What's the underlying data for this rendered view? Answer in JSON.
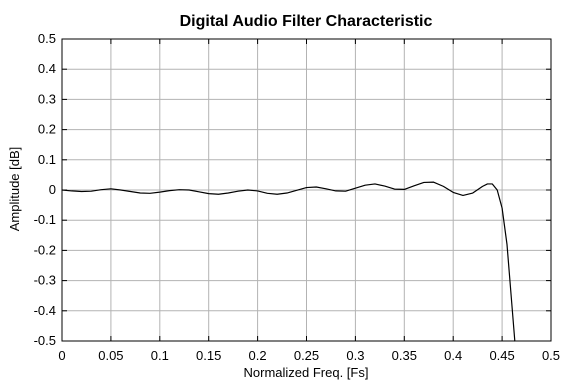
{
  "chart_data": {
    "type": "line",
    "title": "Digital Audio Filter Characteristic",
    "xlabel": "Normalized Freq. [Fs]",
    "ylabel": "Amplitude [dB]",
    "xlim": [
      0,
      0.5
    ],
    "ylim": [
      -0.5,
      0.5
    ],
    "grid": true,
    "x_ticks": [
      "0",
      "0.05",
      "0.1",
      "0.15",
      "0.2",
      "0.25",
      "0.3",
      "0.35",
      "0.4",
      "0.45",
      "0.5"
    ],
    "y_ticks": [
      "0.5",
      "0.4",
      "0.3",
      "0.2",
      "0.1",
      "0",
      "-0.1",
      "-0.2",
      "-0.3",
      "-0.4",
      "-0.5"
    ],
    "series": [
      {
        "color": "#000000",
        "x": [
          0,
          0.01,
          0.02,
          0.03,
          0.04,
          0.05,
          0.06,
          0.07,
          0.08,
          0.09,
          0.1,
          0.11,
          0.12,
          0.13,
          0.14,
          0.15,
          0.16,
          0.17,
          0.18,
          0.19,
          0.2,
          0.21,
          0.22,
          0.23,
          0.24,
          0.25,
          0.26,
          0.27,
          0.28,
          0.29,
          0.3,
          0.31,
          0.32,
          0.33,
          0.34,
          0.35,
          0.36,
          0.37,
          0.38,
          0.39,
          0.4,
          0.41,
          0.42,
          0.43,
          0.435,
          0.44,
          0.445,
          0.45,
          0.455,
          0.46,
          0.463
        ],
        "y": [
          0,
          -0.003,
          -0.005,
          -0.004,
          0.001,
          0.004,
          0.0,
          -0.005,
          -0.01,
          -0.011,
          -0.007,
          -0.002,
          0.001,
          0.0,
          -0.006,
          -0.012,
          -0.014,
          -0.01,
          -0.004,
          0.0,
          -0.003,
          -0.011,
          -0.014,
          -0.01,
          -0.001,
          0.008,
          0.01,
          0.004,
          -0.003,
          -0.004,
          0.006,
          0.016,
          0.02,
          0.013,
          0.003,
          0.002,
          0.014,
          0.025,
          0.026,
          0.012,
          -0.008,
          -0.018,
          -0.01,
          0.012,
          0.02,
          0.02,
          0.0,
          -0.06,
          -0.18,
          -0.38,
          -0.5
        ]
      }
    ]
  }
}
